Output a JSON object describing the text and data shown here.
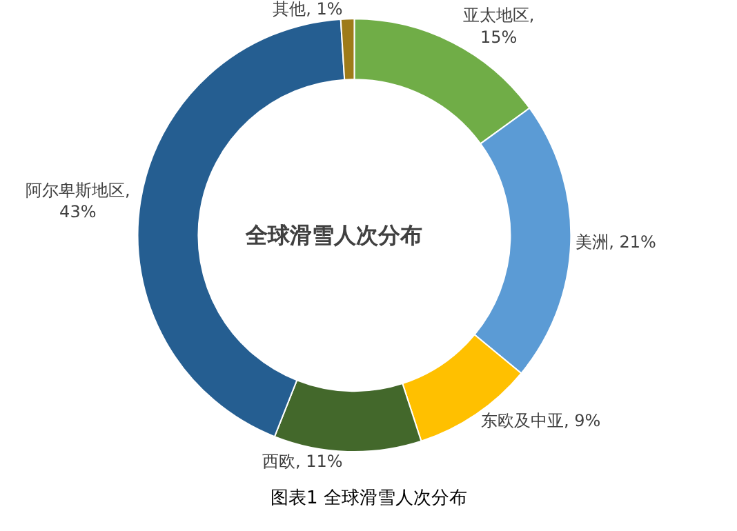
{
  "chart_data": {
    "type": "donut",
    "title": "全球滑雪人次分布",
    "categories": [
      "亚太地区",
      "美洲",
      "东欧及中亚",
      "西欧",
      "阿尔卑斯地区",
      "其他"
    ],
    "values": [
      15,
      21,
      9,
      11,
      43,
      1
    ],
    "value_labels": [
      ", 15%",
      ", 21%",
      ", 9%",
      ", 11%",
      ", 43%",
      ", 1%"
    ],
    "colors": [
      "#70ad47",
      "#5b9bd5",
      "#ffc000",
      "#43682b",
      "#255e91",
      "#9e7b19"
    ],
    "annotations": [
      "图表1 全球滑雪人次分布"
    ],
    "legend": false
  }
}
